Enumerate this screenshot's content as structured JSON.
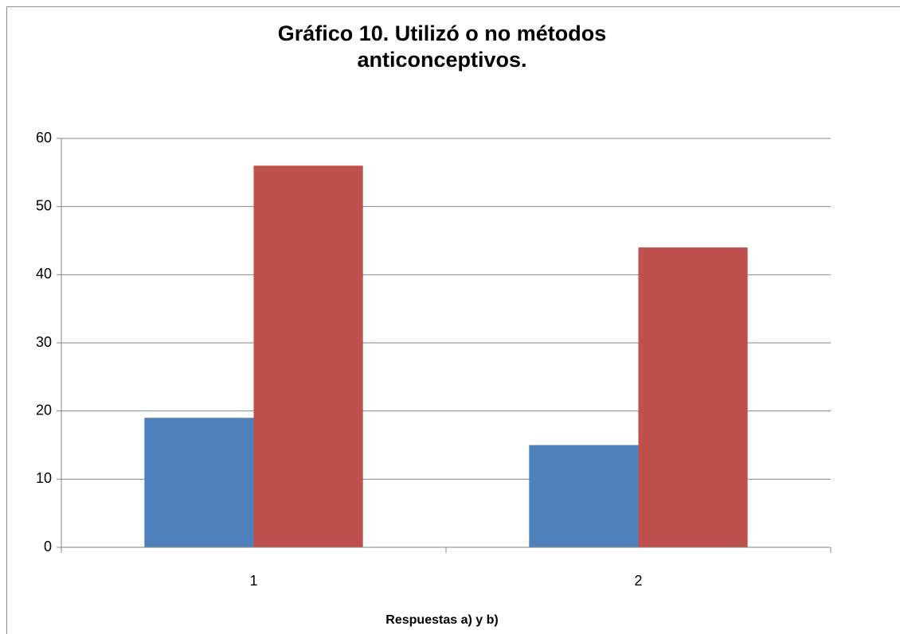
{
  "chart_data": {
    "type": "bar",
    "title": "Gráfico 10. Utilizó o no métodos anticonceptivos.",
    "x_label": "Respuestas a) y b)",
    "categories": [
      "1",
      "2"
    ],
    "series": [
      {
        "color": "#4f81bd",
        "values": [
          19,
          15
        ]
      },
      {
        "color": "#c0504d",
        "values": [
          56,
          44
        ]
      }
    ],
    "ylim": [
      0,
      60
    ],
    "yticks": [
      0,
      10,
      20,
      30,
      40,
      50,
      60
    ],
    "grid": true
  }
}
